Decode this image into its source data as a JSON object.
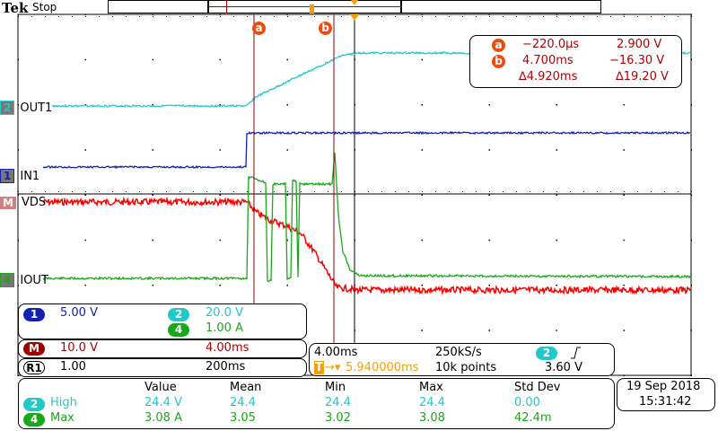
{
  "header": {
    "brand": "Tek",
    "run_state": "Stop"
  },
  "colors": {
    "ch1": "#1420b4",
    "ch2": "#20c8c8",
    "ch4": "#18a818",
    "math": "#b00000",
    "vds_trace": "#ff0000",
    "cursor": "#f04a0a",
    "trigger": "#f5a000"
  },
  "channel_labels": {
    "ch2": "OUT1",
    "ch1": "IN1",
    "math": "VDS",
    "ch4": "IOUT"
  },
  "channel_badges": {
    "ch1": "1",
    "ch2": "2",
    "ch4": "4",
    "math": "M",
    "ref": "R1"
  },
  "cursors": {
    "a_label": "a",
    "b_label": "b",
    "a_time": "−220.0µs",
    "a_value": "2.900 V",
    "b_time": "4.700ms",
    "b_value": "−16.30 V",
    "delta_time": "∆4.920ms",
    "delta_value": "∆19.20 V"
  },
  "vertical": {
    "ch1_scale": "5.00 V",
    "ch2_scale": "20.0 V",
    "ch4_scale": "1.00 A",
    "math_scale": "10.0 V",
    "math_time": "4.00ms",
    "ref_scale": "1.00",
    "ref_time": "200ms"
  },
  "horizontal": {
    "time_div": "4.00ms",
    "sample_rate": "250kS/s",
    "trigger_source": "2",
    "trigger_slope_icon": "rising-edge",
    "trigger_delay": "5.940000ms",
    "record_length": "10k points",
    "trigger_level": "3.60 V"
  },
  "measurements": {
    "headers": [
      "Value",
      "Mean",
      "Min",
      "Max",
      "Std Dev"
    ],
    "rows": [
      {
        "channel": "2",
        "name": "High",
        "value": "24.4 V",
        "mean": "24.4",
        "min": "24.4",
        "max": "24.4",
        "std": "0.00"
      },
      {
        "channel": "4",
        "name": "Max",
        "value": "3.08 A",
        "mean": "3.05",
        "min": "3.02",
        "max": "3.08",
        "std": "42.4m"
      }
    ]
  },
  "datetime": {
    "date": "19 Sep  2018",
    "time": "15:31:42"
  }
}
